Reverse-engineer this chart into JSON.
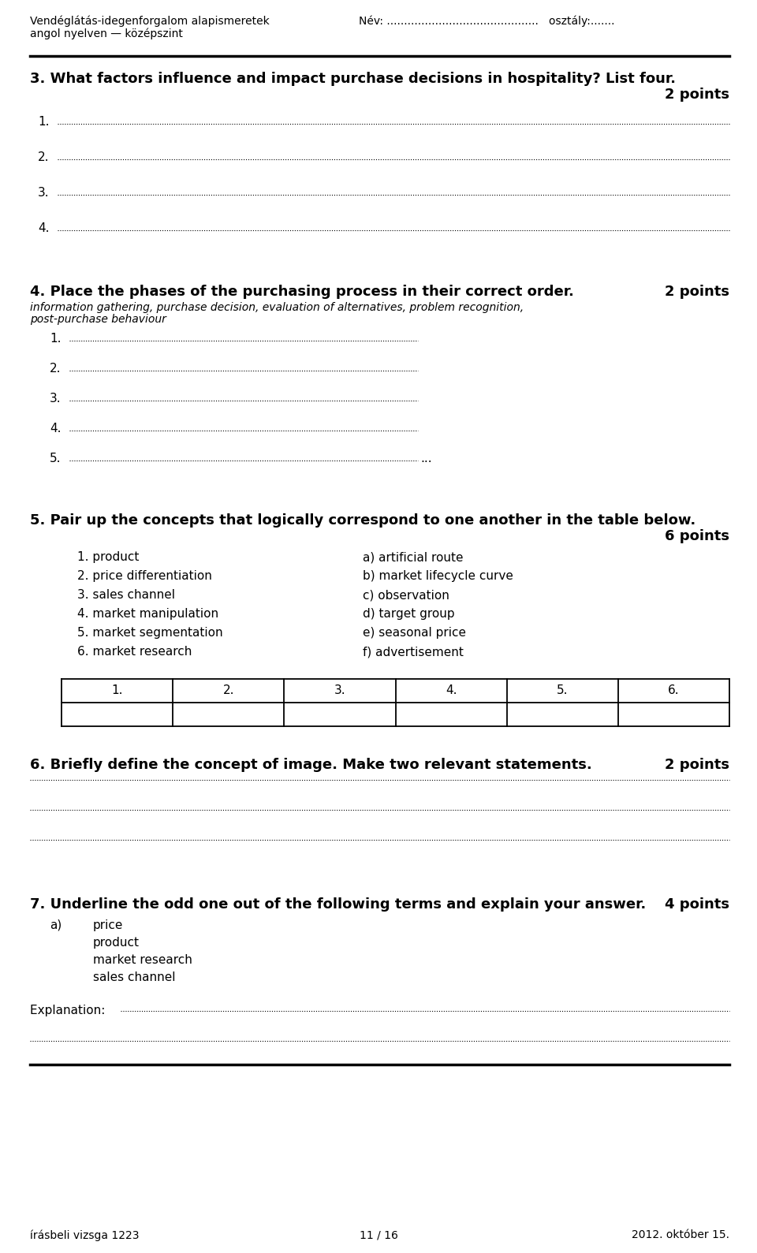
{
  "header_left_line1": "Vendéglátás-idegenforgalom alapismeretek",
  "header_left_line2": "angol nyelven — középszint",
  "header_right": "Név: ............................................   osztály:.......",
  "q3_title": "3. What factors influence and impact purchase decisions in hospitality? List four.",
  "q3_points": "2 points",
  "q3_items": [
    "1.",
    "2.",
    "3.",
    "4."
  ],
  "q4_title": "4. Place the phases of the purchasing process in their correct order.",
  "q4_points": "2 points",
  "q4_body_line1": "information gathering, purchase decision, evaluation of alternatives, problem recognition,",
  "q4_body_line2": "post-purchase behaviour",
  "q4_items": [
    "1.",
    "2.",
    "3.",
    "4.",
    "5."
  ],
  "q5_title": "5. Pair up the concepts that logically correspond to one another in the table below.",
  "q5_points": "6 points",
  "q5_left": [
    "1. product",
    "2. price differentiation",
    "3. sales channel",
    "4. market manipulation",
    "5. market segmentation",
    "6. market research"
  ],
  "q5_right": [
    "a) artificial route",
    "b) market lifecycle curve",
    "c) observation",
    "d) target group",
    "e) seasonal price",
    "f) advertisement"
  ],
  "q5_table_headers": [
    "1.",
    "2.",
    "3.",
    "4.",
    "5.",
    "6."
  ],
  "q6_title": "6. Briefly define the concept of image. Make two relevant statements.",
  "q6_points": "2 points",
  "q7_title": "7. Underline the odd one out of the following terms and explain your answer.",
  "q7_points": "4 points",
  "q7_label": "a)",
  "q7_items": [
    "price",
    "product",
    "market research",
    "sales channel"
  ],
  "explanation_label": "Explanation: ",
  "footer_left": "írásbeli vizsga 1223",
  "footer_center": "11 / 16",
  "footer_right": "2012. október 15.",
  "bg_color": "#ffffff",
  "text_color": "#000000",
  "LM": 38,
  "RM": 925,
  "header_font": 10,
  "body_font": 11,
  "bold_font": 13,
  "small_font": 10
}
